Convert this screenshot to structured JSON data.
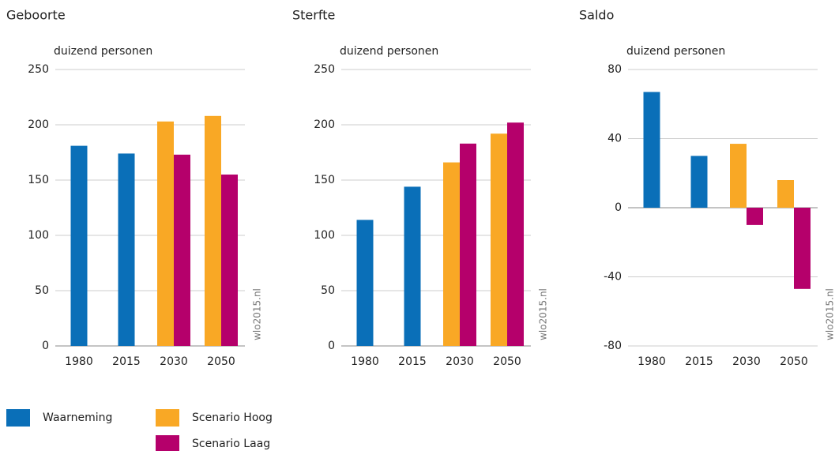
{
  "chart_data": [
    {
      "type": "bar",
      "title": "Geboorte",
      "ylabel": "duizend personen",
      "source": "wlo2015.nl",
      "categories": [
        "1980",
        "2015",
        "2030",
        "2050"
      ],
      "series": [
        {
          "name": "Waarneming",
          "color": "#0a6fb8",
          "values": [
            181,
            174,
            null,
            null
          ]
        },
        {
          "name": "Scenario Hoog",
          "color": "#f9a825",
          "values": [
            null,
            null,
            203,
            208
          ]
        },
        {
          "name": "Scenario Laag",
          "color": "#b5006b",
          "values": [
            null,
            null,
            173,
            155
          ]
        }
      ],
      "ylim": [
        0,
        250
      ],
      "yticks": [
        0,
        50,
        100,
        150,
        200,
        250
      ],
      "grid": true
    },
    {
      "type": "bar",
      "title": "Sterfte",
      "ylabel": "duizend personen",
      "source": "wlo2015.nl",
      "categories": [
        "1980",
        "2015",
        "2030",
        "2050"
      ],
      "series": [
        {
          "values": [
            114,
            144,
            null,
            null
          ]
        },
        {
          "values": [
            null,
            null,
            166,
            192
          ]
        },
        {
          "values": [
            null,
            null,
            183,
            202
          ]
        }
      ],
      "ylim": [
        0,
        250
      ],
      "yticks": [
        0,
        50,
        100,
        150,
        200,
        250
      ],
      "grid": true
    },
    {
      "type": "bar",
      "title": "Saldo",
      "ylabel": "duizend personen",
      "source": "wlo2015.nl",
      "categories": [
        "1980",
        "2015",
        "2030",
        "2050"
      ],
      "series": [
        {
          "values": [
            67,
            30,
            null,
            null
          ]
        },
        {
          "values": [
            null,
            null,
            37,
            16
          ]
        },
        {
          "values": [
            null,
            null,
            -10,
            -47
          ]
        }
      ],
      "ylim": [
        -80,
        80
      ],
      "yticks": [
        -80,
        -40,
        0,
        40,
        80
      ],
      "grid": true
    }
  ]
}
